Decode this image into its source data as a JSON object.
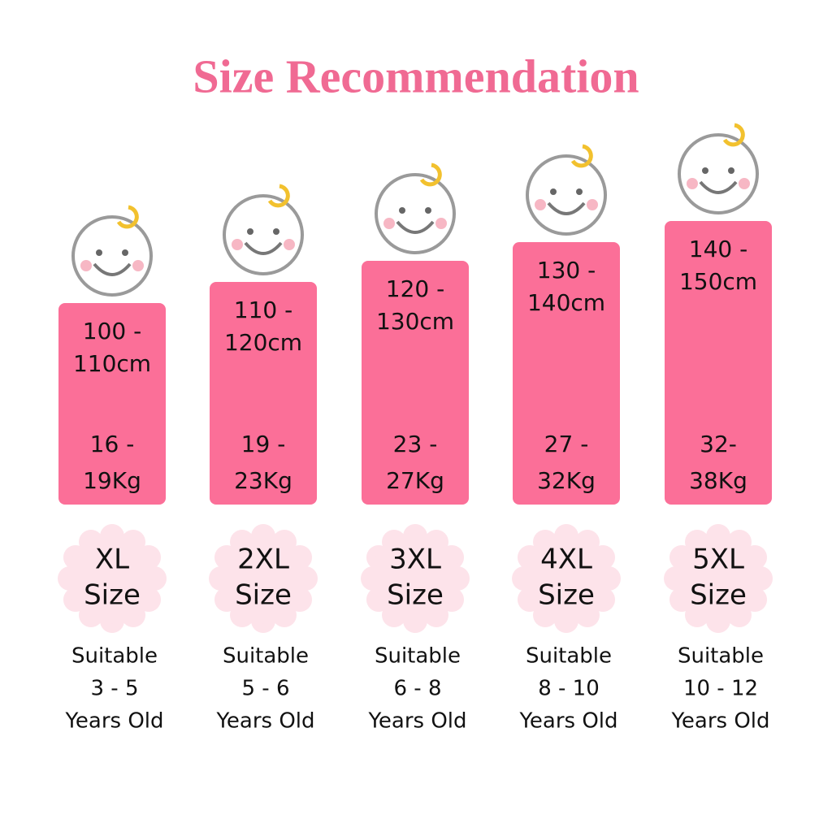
{
  "header": {
    "title": "Size Recommendation"
  },
  "columns": [
    {
      "height": [
        "100 -",
        "110cm"
      ],
      "weight": [
        "16 -",
        "19Kg"
      ],
      "size": [
        "XL",
        "Size"
      ],
      "suitable": [
        "Suitable",
        "3 - 5",
        "Years Old"
      ]
    },
    {
      "height": [
        "110 -",
        "120cm"
      ],
      "weight": [
        "19 -",
        "23Kg"
      ],
      "size": [
        "2XL",
        "Size"
      ],
      "suitable": [
        "Suitable",
        "5 - 6",
        "Years Old"
      ]
    },
    {
      "height": [
        "120 -",
        "130cm"
      ],
      "weight": [
        "23 -",
        "27Kg"
      ],
      "size": [
        "3XL",
        "Size"
      ],
      "suitable": [
        "Suitable",
        "6 - 8",
        "Years Old"
      ]
    },
    {
      "height": [
        "130 -",
        "140cm"
      ],
      "weight": [
        "27 -",
        "32Kg"
      ],
      "size": [
        "4XL",
        "Size"
      ],
      "suitable": [
        "Suitable",
        "8 - 10",
        "Years Old"
      ]
    },
    {
      "height": [
        "140 -",
        "150cm"
      ],
      "weight": [
        "32-",
        "38Kg"
      ],
      "size": [
        "5XL",
        "Size"
      ],
      "suitable": [
        "Suitable",
        "10 - 12",
        "Years Old"
      ]
    }
  ]
}
